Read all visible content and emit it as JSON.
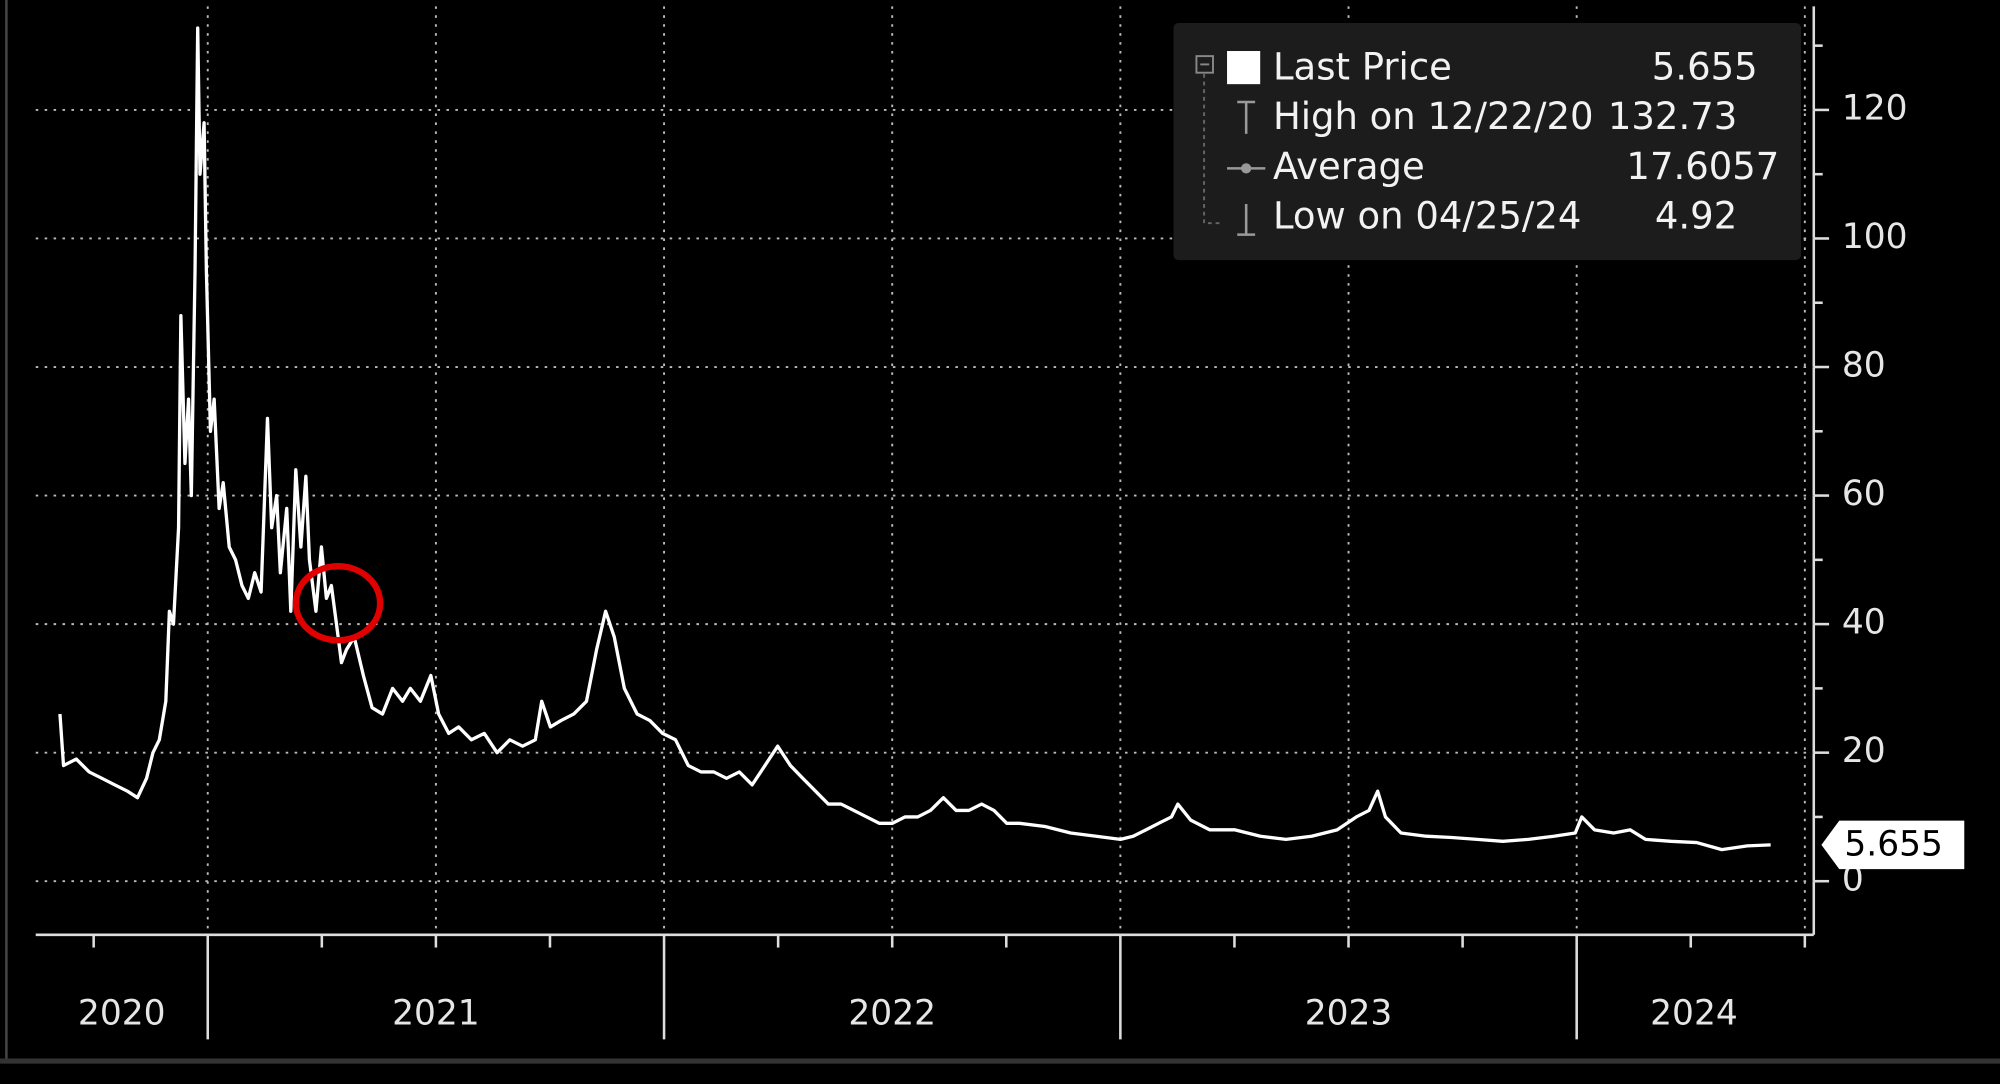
{
  "chart_data": {
    "type": "line",
    "series": [
      {
        "name": "Last Price",
        "color": "#ffffff",
        "x": [
          2020.676,
          2020.684,
          2020.712,
          2020.74,
          2020.768,
          2020.796,
          2020.824,
          2020.846,
          2020.866,
          2020.88,
          2020.894,
          2020.908,
          2020.916,
          2020.925,
          2020.936,
          2020.941,
          2020.95,
          2020.958,
          2020.964,
          2020.972,
          2020.978,
          2020.983,
          2020.992,
          2020.997,
          2021.006,
          2021.014,
          2021.025,
          2021.034,
          2021.047,
          2021.061,
          2021.075,
          2021.089,
          2021.103,
          2021.117,
          2021.131,
          2021.14,
          2021.151,
          2021.159,
          2021.173,
          2021.182,
          2021.193,
          2021.204,
          2021.215,
          2021.223,
          2021.237,
          2021.249,
          2021.26,
          2021.271,
          2021.282,
          2021.293,
          2021.304,
          2021.321,
          2021.341,
          2021.36,
          2021.383,
          2021.405,
          2021.427,
          2021.444,
          2021.466,
          2021.489,
          2021.506,
          2021.528,
          2021.55,
          2021.578,
          2021.606,
          2021.634,
          2021.662,
          2021.69,
          2021.718,
          2021.732,
          2021.751,
          2021.774,
          2021.802,
          2021.83,
          2021.852,
          2021.872,
          2021.891,
          2021.913,
          2021.941,
          2021.969,
          2021.997,
          2022.025,
          2022.053,
          2022.081,
          2022.109,
          2022.137,
          2022.165,
          2022.193,
          2022.221,
          2022.249,
          2022.277,
          2022.304,
          2022.332,
          2022.36,
          2022.388,
          2022.416,
          2022.444,
          2022.472,
          2022.5,
          2022.528,
          2022.556,
          2022.584,
          2022.612,
          2022.64,
          2022.668,
          2022.696,
          2022.723,
          2022.751,
          2022.779,
          2022.835,
          2022.891,
          2022.947,
          2023.0,
          2023.028,
          2023.056,
          2023.084,
          2023.112,
          2023.126,
          2023.154,
          2023.196,
          2023.251,
          2023.307,
          2023.363,
          2023.419,
          2023.475,
          2023.517,
          2023.545,
          2023.564,
          2023.581,
          2023.615,
          2023.67,
          2023.726,
          2023.782,
          2023.838,
          2023.894,
          2023.95,
          2023.997,
          2024.011,
          2024.039,
          2024.081,
          2024.117,
          2024.151,
          2024.207,
          2024.263,
          2024.318,
          2024.374,
          2024.425
        ],
        "values": [
          26,
          18,
          19,
          17,
          16,
          15,
          14,
          13,
          16,
          20,
          22,
          28,
          42,
          40,
          55,
          88,
          65,
          75,
          60,
          95,
          132.73,
          110,
          118,
          95,
          70,
          75,
          58,
          62,
          52,
          50,
          46,
          44,
          48,
          45,
          72,
          55,
          60,
          48,
          58,
          42,
          64,
          52,
          63,
          50,
          42,
          52,
          44,
          46,
          40,
          34,
          36,
          38,
          32,
          27,
          26,
          30,
          28,
          30,
          28,
          32,
          26,
          23,
          24,
          22,
          23,
          20,
          22,
          21,
          22,
          28,
          24,
          25,
          26,
          28,
          36,
          42,
          38,
          30,
          26,
          25,
          23,
          22,
          18,
          17,
          17,
          16,
          17,
          15,
          18,
          21,
          18,
          16,
          14,
          12,
          12,
          11,
          10,
          9,
          9,
          10,
          10,
          11,
          13,
          11,
          11,
          12,
          11,
          9,
          9,
          8.5,
          7.5,
          7,
          6.5,
          7,
          8,
          9,
          10,
          12,
          9.5,
          8,
          8,
          7,
          6.5,
          7,
          8,
          10,
          11,
          14,
          10,
          7.5,
          7,
          6.8,
          6.5,
          6.2,
          6.5,
          7,
          7.5,
          10,
          8,
          7.5,
          8,
          6.5,
          6.2,
          6,
          4.92,
          5.5,
          5.655
        ]
      }
    ],
    "xlim": [
      2020.623,
      2024.514
    ],
    "xticks": [
      2021,
      2022,
      2023,
      2024
    ],
    "xticks_minor": [
      2020.75,
      2021.25,
      2021.5,
      2021.75,
      2022.25,
      2022.5,
      2022.75,
      2023.25,
      2023.5,
      2023.75,
      2024.25,
      2024.5
    ],
    "year_labels": [
      "2020",
      "2021",
      "2022",
      "2023",
      "2024"
    ],
    "ylim": [
      -8,
      136
    ],
    "yticks": [
      0,
      20,
      40,
      60,
      80,
      100,
      120
    ],
    "yticks_minor": [
      10,
      30,
      50,
      70,
      90,
      110,
      130
    ],
    "grid": true,
    "last_price": 5.655,
    "stats": [
      {
        "label": "High on 12/22/20",
        "value": 132.73
      },
      {
        "label": "Average",
        "value": 17.6057
      },
      {
        "label": "Low on 04/25/24",
        "value": 4.92
      }
    ]
  }
}
